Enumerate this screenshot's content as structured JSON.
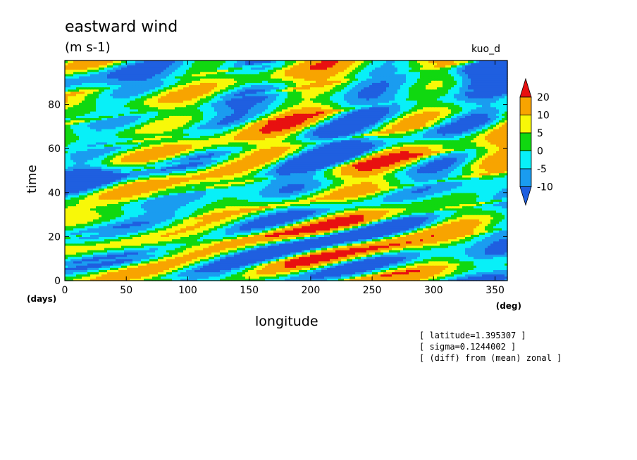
{
  "header": {
    "title": "eastward wind",
    "units": "(m s-1)",
    "source": "kuo_d"
  },
  "info_lines": [
    "[ latitude=1.395307 ]",
    "[ sigma=0.1244002 ]",
    "[ (diff) from (mean) zonal ]"
  ],
  "chart_data": {
    "type": "heatmap",
    "title": "eastward wind",
    "units": "(m s-1)",
    "xlabel": "longitude",
    "ylabel": "time",
    "x_unit": "(deg)",
    "y_unit": "(days)",
    "xlim": [
      0,
      360
    ],
    "ylim": [
      0,
      100
    ],
    "x_ticks": [
      0,
      50,
      100,
      150,
      200,
      250,
      300,
      350
    ],
    "y_ticks": [
      0,
      20,
      40,
      60,
      80
    ],
    "colorbar": {
      "levels": [
        -10,
        -5,
        0,
        5,
        10,
        20
      ],
      "level_labels": [
        "20",
        "10",
        "5",
        "0",
        "-5",
        "-10"
      ],
      "colors": [
        "#1f5fe0",
        "#1a9cf0",
        "#08f0f8",
        "#10d810",
        "#f8f808",
        "#f8a400",
        "#e81010"
      ],
      "extend": "both"
    },
    "dominant_structures": [
      {
        "feature": "eastward-propagating positive bands",
        "value_range": [
          10,
          25
        ]
      },
      {
        "feature": "negative patches",
        "x": [
          0,
          40
        ],
        "y": [
          35,
          55
        ],
        "value": -10
      },
      {
        "feature": "negative patches",
        "x": [
          300,
          360
        ],
        "y": [
          35,
          50
        ],
        "value": -10
      },
      {
        "feature": "negative patches",
        "x": [
          310,
          360
        ],
        "y": [
          90,
          100
        ],
        "value": -10
      }
    ]
  }
}
